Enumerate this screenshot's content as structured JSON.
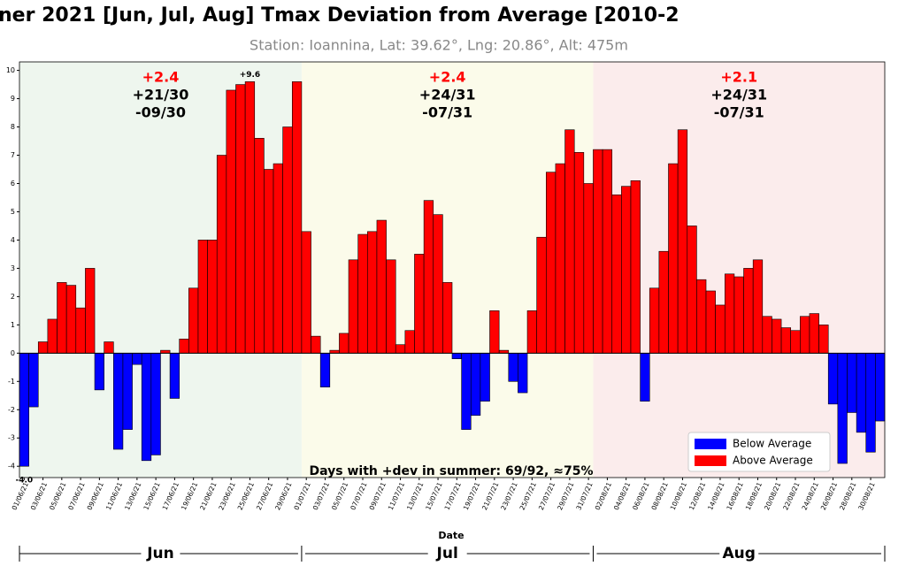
{
  "chart_data": {
    "type": "bar",
    "title": "ner 2021 [Jun, Jul, Aug] Tmax Deviation from Average [2010-2",
    "subtitle": "Station: Ioannina, Lat: 39.62°, Lng: 20.86°, Alt: 475m",
    "x_label": "Date",
    "note": "Days with +dev in summer: 69/92, ≈75%",
    "categories": [
      "01/06/21",
      null,
      "03/06/21",
      null,
      "05/06/21",
      null,
      "07/06/21",
      null,
      "09/06/21",
      null,
      "11/06/21",
      null,
      "13/06/21",
      null,
      "15/06/21",
      null,
      "17/06/21",
      null,
      "19/06/21",
      null,
      "21/06/21",
      null,
      "23/06/21",
      null,
      "25/06/21",
      null,
      "27/06/21",
      null,
      "29/06/21",
      null,
      "01/07/21",
      null,
      "03/07/21",
      null,
      "05/07/21",
      null,
      "07/07/21",
      null,
      "09/07/21",
      null,
      "11/07/21",
      null,
      "13/07/21",
      null,
      "15/07/21",
      null,
      "17/07/21",
      null,
      "19/07/21",
      null,
      "21/07/21",
      null,
      "23/07/21",
      null,
      "25/07/21",
      null,
      "27/07/21",
      null,
      "29/07/21",
      null,
      "31/07/21",
      null,
      "02/08/21",
      null,
      "04/08/21",
      null,
      "06/08/21",
      null,
      "08/08/21",
      null,
      "10/08/21",
      null,
      "12/08/21",
      null,
      "14/08/21",
      null,
      "16/08/21",
      null,
      "18/08/21",
      null,
      "20/08/21",
      null,
      "22/08/21",
      null,
      "24/08/21",
      null,
      "26/08/21",
      null,
      "28/08/21",
      null,
      "30/08/21",
      null
    ],
    "values": [
      -4.0,
      -1.9,
      0.4,
      1.2,
      2.5,
      2.4,
      1.6,
      3.0,
      -1.3,
      0.4,
      -3.4,
      -2.7,
      -0.4,
      -3.8,
      -3.6,
      0.1,
      -1.6,
      0.5,
      2.3,
      4.0,
      4.0,
      7.0,
      9.3,
      9.5,
      9.6,
      7.6,
      6.5,
      6.7,
      8.0,
      9.6,
      4.3,
      0.6,
      -1.2,
      0.1,
      0.7,
      3.3,
      4.2,
      4.3,
      4.7,
      3.3,
      0.3,
      0.8,
      3.5,
      5.4,
      4.9,
      2.5,
      -0.2,
      -2.7,
      -2.2,
      -1.7,
      1.5,
      0.1,
      -1.0,
      -1.4,
      1.5,
      4.1,
      6.4,
      6.7,
      7.9,
      7.1,
      6.0,
      7.2,
      7.2,
      5.6,
      5.9,
      6.1,
      -1.7,
      2.3,
      3.6,
      6.7,
      7.9,
      4.5,
      2.6,
      2.2,
      1.7,
      2.8,
      2.7,
      3.0,
      3.3,
      1.3,
      1.2,
      0.9,
      0.8,
      1.3,
      1.4,
      1.0,
      -1.8,
      -3.9,
      -2.1,
      -2.8,
      -3.5,
      -2.4
    ],
    "value_labels": [
      "-4.0",
      null,
      null,
      null,
      null,
      null,
      null,
      null,
      null,
      null,
      null,
      null,
      null,
      null,
      null,
      null,
      null,
      null,
      null,
      null,
      null,
      null,
      null,
      null,
      "+9.6",
      null,
      null,
      null,
      null,
      null,
      null,
      null,
      null,
      null,
      null,
      null,
      null,
      null,
      null,
      null,
      null,
      null,
      null,
      null,
      null,
      null,
      null,
      null,
      null,
      null,
      null,
      null,
      null,
      null,
      null,
      null,
      null,
      null,
      null,
      null,
      null,
      null,
      null,
      null,
      null,
      null,
      null,
      null,
      null,
      null,
      null,
      null,
      null,
      null,
      null,
      null,
      null,
      null,
      null,
      null,
      null,
      null,
      null,
      null,
      null,
      null,
      null,
      null,
      null,
      null,
      null,
      null
    ],
    "legend": [
      {
        "name": "Below Average",
        "color": "#0000ff"
      },
      {
        "name": "Above Average",
        "color": "#ff0000"
      }
    ],
    "months": [
      {
        "label": "Jun",
        "mean": "+2.4",
        "pos": "+21/30",
        "neg": "-09/30",
        "color": "#eef6ee"
      },
      {
        "label": "Jul",
        "mean": "+2.4",
        "pos": "+24/31",
        "neg": "-07/31",
        "color": "#fbfbea"
      },
      {
        "label": "Aug",
        "mean": "+2.1",
        "pos": "+24/31",
        "neg": "-07/31",
        "color": "#fbecec"
      }
    ],
    "ylim": [
      -4.4,
      10.3
    ],
    "yticks": [
      -4,
      -3,
      -2,
      -1,
      0,
      1,
      2,
      3,
      4,
      5,
      6,
      7,
      8,
      9,
      10
    ]
  }
}
